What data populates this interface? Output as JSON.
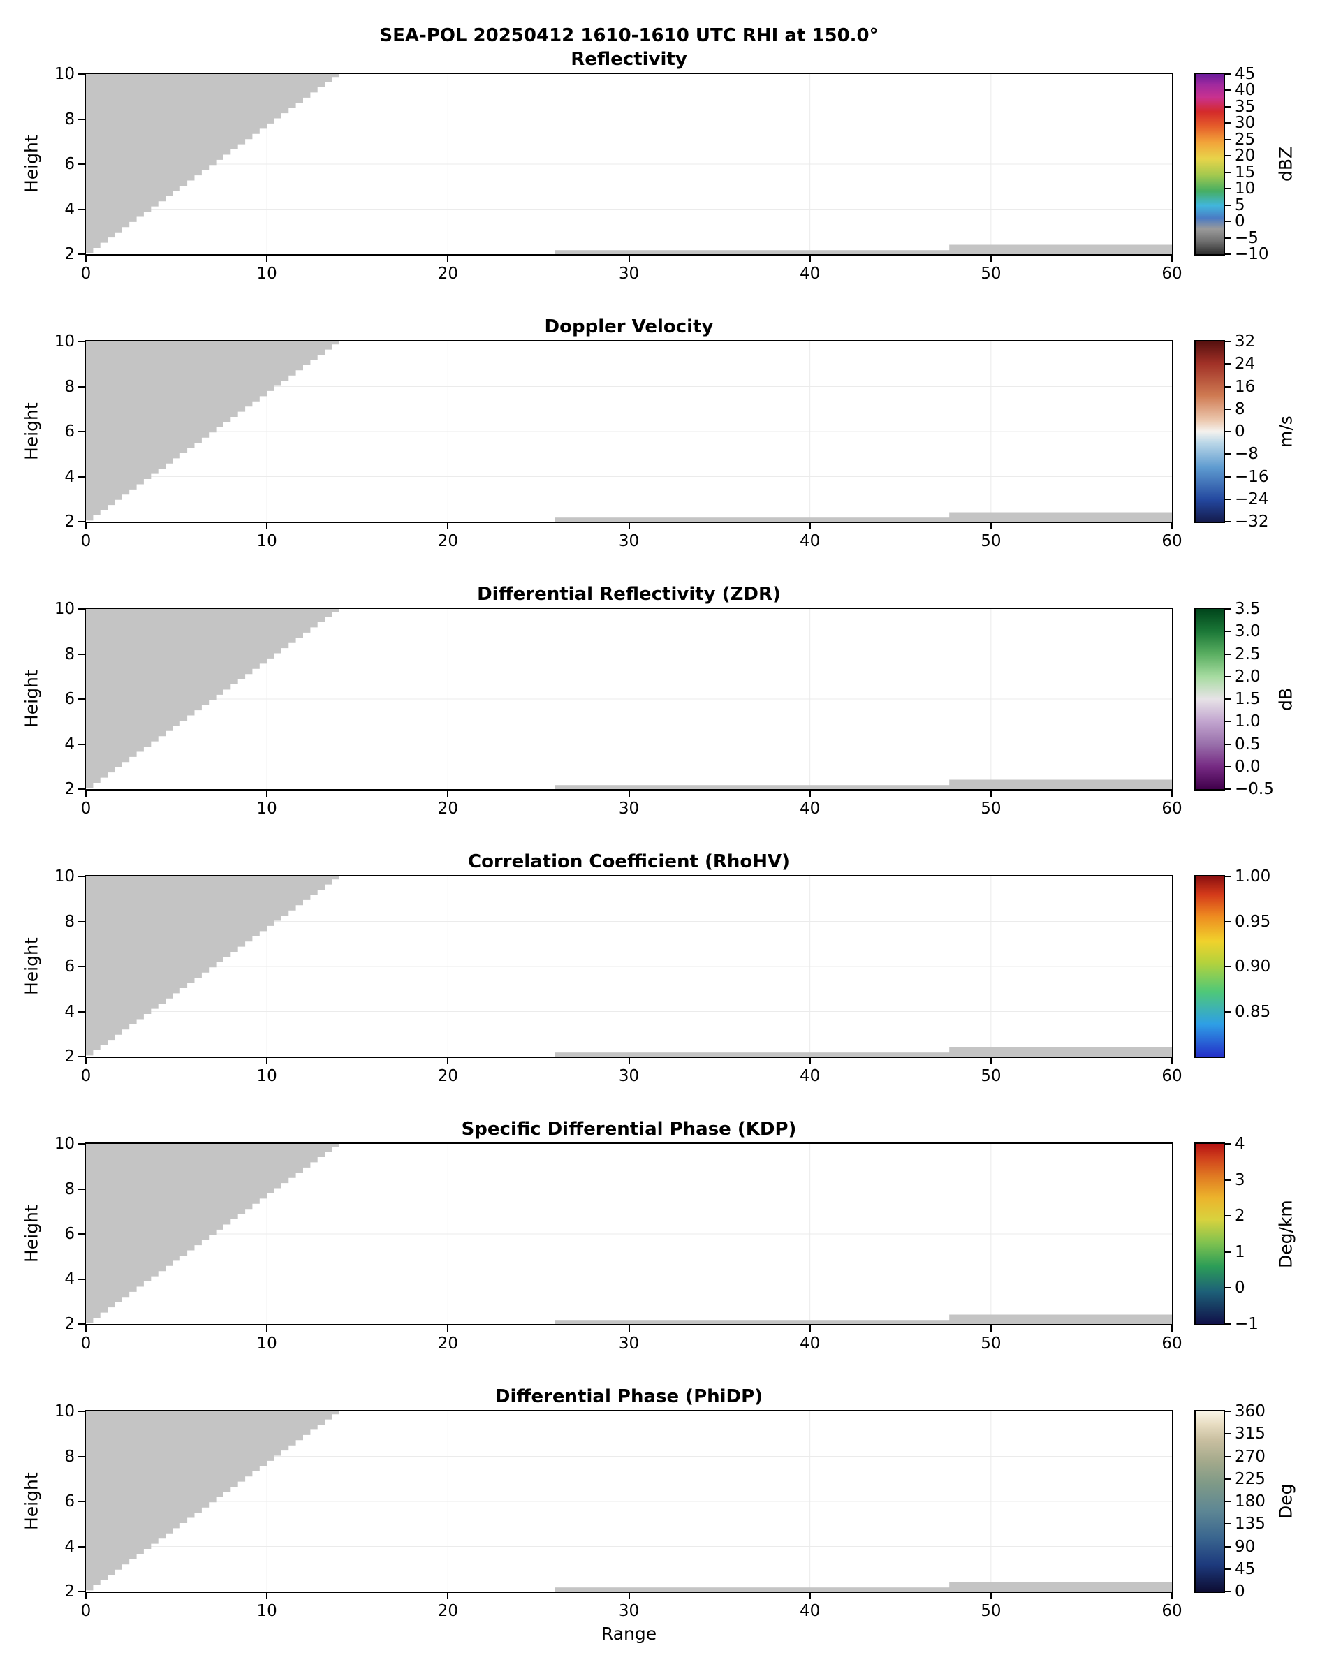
{
  "figure": {
    "suptitle": "SEA-POL 20250412 1610-1610 UTC RHI at 150.0°",
    "xlabel": "Range",
    "ylabel": "Height",
    "background": "#ffffff",
    "mask_color": "#c4c4c4"
  },
  "mask": {
    "note": "gray regions = masked / no-data; all panels show identical coverage, no valid echoes",
    "wedge": {
      "x_start": 0,
      "y_start": 2.05,
      "slope": 0.575,
      "step": 0.4
    },
    "strips": [
      [
        25.9,
        60,
        2.0,
        2.18
      ],
      [
        47.7,
        60,
        2.0,
        2.42
      ]
    ]
  },
  "chart_data": [
    {
      "type": "heatmap",
      "id": "reflectivity",
      "title": "Reflectivity",
      "units": "dBZ",
      "x_range": [
        0,
        60
      ],
      "y_range": [
        2,
        10
      ],
      "x_ticks": [
        "0",
        "10",
        "20",
        "30",
        "40",
        "50",
        "60"
      ],
      "x_tick_values": [
        0,
        10,
        20,
        30,
        40,
        50,
        60
      ],
      "y_ticks": [
        "2",
        "4",
        "6",
        "8",
        "10"
      ],
      "y_tick_values": [
        2,
        4,
        6,
        8,
        10
      ],
      "colorbar": {
        "vmin": -10,
        "vmax": 45,
        "tick_values": [
          45,
          40,
          35,
          30,
          25,
          20,
          15,
          10,
          5,
          0,
          -5,
          -10
        ],
        "tick_labels": [
          "45",
          "40",
          "35",
          "30",
          "25",
          "20",
          "15",
          "10",
          "5",
          "0",
          "−5",
          "−10"
        ],
        "stops": [
          [
            0.0,
            "#2e2e2e"
          ],
          [
            0.07,
            "#6e6e6e"
          ],
          [
            0.14,
            "#9a9a9a"
          ],
          [
            0.2,
            "#4a7bc4"
          ],
          [
            0.27,
            "#41b6dd"
          ],
          [
            0.35,
            "#46ae62"
          ],
          [
            0.44,
            "#a4c94e"
          ],
          [
            0.53,
            "#e8d44a"
          ],
          [
            0.62,
            "#f2a43a"
          ],
          [
            0.71,
            "#e55d2a"
          ],
          [
            0.79,
            "#d42a2a"
          ],
          [
            0.87,
            "#c9318f"
          ],
          [
            0.94,
            "#a12a9e"
          ],
          [
            1.0,
            "#6a1b9a"
          ]
        ]
      }
    },
    {
      "type": "heatmap",
      "id": "doppler-velocity",
      "title": "Doppler Velocity",
      "units": "m/s",
      "x_range": [
        0,
        60
      ],
      "y_range": [
        2,
        10
      ],
      "x_ticks": [
        "0",
        "10",
        "20",
        "30",
        "40",
        "50",
        "60"
      ],
      "x_tick_values": [
        0,
        10,
        20,
        30,
        40,
        50,
        60
      ],
      "y_ticks": [
        "2",
        "4",
        "6",
        "8",
        "10"
      ],
      "y_tick_values": [
        2,
        4,
        6,
        8,
        10
      ],
      "colorbar": {
        "vmin": -32,
        "vmax": 32,
        "tick_values": [
          32,
          24,
          16,
          8,
          0,
          -8,
          -16,
          -24,
          -32
        ],
        "tick_labels": [
          "32",
          "24",
          "16",
          "8",
          "0",
          "−8",
          "−16",
          "−24",
          "−32"
        ],
        "stops": [
          [
            0.0,
            "#151c4e"
          ],
          [
            0.12,
            "#23479e"
          ],
          [
            0.3,
            "#5e9bd0"
          ],
          [
            0.44,
            "#bcd8e8"
          ],
          [
            0.5,
            "#f4f2ee"
          ],
          [
            0.56,
            "#ecc9b0"
          ],
          [
            0.7,
            "#cf7a52"
          ],
          [
            0.88,
            "#a03026"
          ],
          [
            1.0,
            "#56100f"
          ]
        ]
      }
    },
    {
      "type": "heatmap",
      "id": "zdr",
      "title": "Differential Reflectivity (ZDR)",
      "units": "dB",
      "x_range": [
        0,
        60
      ],
      "y_range": [
        2,
        10
      ],
      "x_ticks": [
        "0",
        "10",
        "20",
        "30",
        "40",
        "50",
        "60"
      ],
      "x_tick_values": [
        0,
        10,
        20,
        30,
        40,
        50,
        60
      ],
      "y_ticks": [
        "2",
        "4",
        "6",
        "8",
        "10"
      ],
      "y_tick_values": [
        2,
        4,
        6,
        8,
        10
      ],
      "colorbar": {
        "vmin": -0.5,
        "vmax": 3.5,
        "tick_values": [
          3.5,
          3.0,
          2.5,
          2.0,
          1.5,
          1.0,
          0.5,
          0.0,
          -0.5
        ],
        "tick_labels": [
          "3.5",
          "3.0",
          "2.5",
          "2.0",
          "1.5",
          "1.0",
          "0.5",
          "0.0",
          "−0.5"
        ],
        "stops": [
          [
            0.0,
            "#40004b"
          ],
          [
            0.125,
            "#762a83"
          ],
          [
            0.25,
            "#9970ab"
          ],
          [
            0.375,
            "#c2a5cf"
          ],
          [
            0.5,
            "#e7e3e7"
          ],
          [
            0.625,
            "#a6dba0"
          ],
          [
            0.75,
            "#5aae61"
          ],
          [
            0.875,
            "#1b7837"
          ],
          [
            1.0,
            "#00441b"
          ]
        ]
      }
    },
    {
      "type": "heatmap",
      "id": "rhohv",
      "title": "Correlation Coefficient (RhoHV)",
      "units": null,
      "x_range": [
        0,
        60
      ],
      "y_range": [
        2,
        10
      ],
      "x_ticks": [
        "0",
        "10",
        "20",
        "30",
        "40",
        "50",
        "60"
      ],
      "x_tick_values": [
        0,
        10,
        20,
        30,
        40,
        50,
        60
      ],
      "y_ticks": [
        "2",
        "4",
        "6",
        "8",
        "10"
      ],
      "y_tick_values": [
        2,
        4,
        6,
        8,
        10
      ],
      "colorbar": {
        "vmin": 0.8,
        "vmax": 1.0,
        "tick_values": [
          1.0,
          0.95,
          0.9,
          0.85
        ],
        "tick_labels": [
          "1.00",
          "0.95",
          "0.90",
          "0.85"
        ],
        "stops": [
          [
            0.0,
            "#2430c8"
          ],
          [
            0.18,
            "#2e9fe6"
          ],
          [
            0.36,
            "#4fc878"
          ],
          [
            0.52,
            "#b4d23c"
          ],
          [
            0.64,
            "#f0d22c"
          ],
          [
            0.78,
            "#ee8a20"
          ],
          [
            0.9,
            "#d43a1a"
          ],
          [
            1.0,
            "#8c1010"
          ]
        ]
      }
    },
    {
      "type": "heatmap",
      "id": "kdp",
      "title": "Specific Differential Phase (KDP)",
      "units": "Deg/km",
      "x_range": [
        0,
        60
      ],
      "y_range": [
        2,
        10
      ],
      "x_ticks": [
        "0",
        "10",
        "20",
        "30",
        "40",
        "50",
        "60"
      ],
      "x_tick_values": [
        0,
        10,
        20,
        30,
        40,
        50,
        60
      ],
      "y_ticks": [
        "2",
        "4",
        "6",
        "8",
        "10"
      ],
      "y_tick_values": [
        2,
        4,
        6,
        8,
        10
      ],
      "colorbar": {
        "vmin": -1,
        "vmax": 4,
        "tick_values": [
          4,
          3,
          2,
          1,
          0,
          -1
        ],
        "tick_labels": [
          "4",
          "3",
          "2",
          "1",
          "0",
          "−1"
        ],
        "stops": [
          [
            0.0,
            "#101048"
          ],
          [
            0.18,
            "#1d6078"
          ],
          [
            0.32,
            "#2c9d57"
          ],
          [
            0.45,
            "#7fc24f"
          ],
          [
            0.58,
            "#d8d23e"
          ],
          [
            0.7,
            "#ecb42c"
          ],
          [
            0.82,
            "#e07a22"
          ],
          [
            0.92,
            "#d0421c"
          ],
          [
            1.0,
            "#b51212"
          ]
        ]
      }
    },
    {
      "type": "heatmap",
      "id": "phidp",
      "title": "Differential Phase (PhiDP)",
      "units": "Deg",
      "x_range": [
        0,
        60
      ],
      "y_range": [
        2,
        10
      ],
      "x_ticks": [
        "0",
        "10",
        "20",
        "30",
        "40",
        "50",
        "60"
      ],
      "x_tick_values": [
        0,
        10,
        20,
        30,
        40,
        50,
        60
      ],
      "y_ticks": [
        "2",
        "4",
        "6",
        "8",
        "10"
      ],
      "y_tick_values": [
        2,
        4,
        6,
        8,
        10
      ],
      "colorbar": {
        "vmin": 0,
        "vmax": 360,
        "tick_values": [
          360,
          315,
          270,
          225,
          180,
          135,
          90,
          45,
          0
        ],
        "tick_labels": [
          "360",
          "315",
          "270",
          "225",
          "180",
          "135",
          "90",
          "45",
          "0"
        ],
        "stops": [
          [
            0.0,
            "#0d0d33"
          ],
          [
            0.15,
            "#1d3a7d"
          ],
          [
            0.3,
            "#3a668f"
          ],
          [
            0.45,
            "#5e8794"
          ],
          [
            0.6,
            "#7f9a87"
          ],
          [
            0.72,
            "#a3a98b"
          ],
          [
            0.84,
            "#c9bfa0"
          ],
          [
            0.93,
            "#e8ddc2"
          ],
          [
            1.0,
            "#faf6e8"
          ]
        ]
      }
    }
  ]
}
